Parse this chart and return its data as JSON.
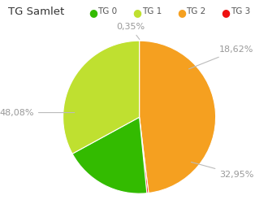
{
  "title": "TG Samlet",
  "slices": [
    48.08,
    0.35,
    18.62,
    32.95
  ],
  "slice_labels": [
    "TG 2",
    "TG 3",
    "TG 0",
    "TG 1"
  ],
  "colors": [
    "#f5a020",
    "#ee1111",
    "#33bb00",
    "#bfe030"
  ],
  "legend_labels": [
    "TG 0",
    "TG 1",
    "TG 2",
    "TG 3"
  ],
  "legend_colors": [
    "#33bb00",
    "#bfe030",
    "#f5a020",
    "#ee1111"
  ],
  "label_texts": [
    "48,08%",
    "0,35%",
    "18,62%",
    "32,95%"
  ],
  "background_color": "#ffffff",
  "startangle": 90,
  "label_color": "#999999",
  "line_color": "#bbbbbb",
  "title_color": "#333333",
  "label_fontsize": 8.0,
  "title_fontsize": 9.5
}
